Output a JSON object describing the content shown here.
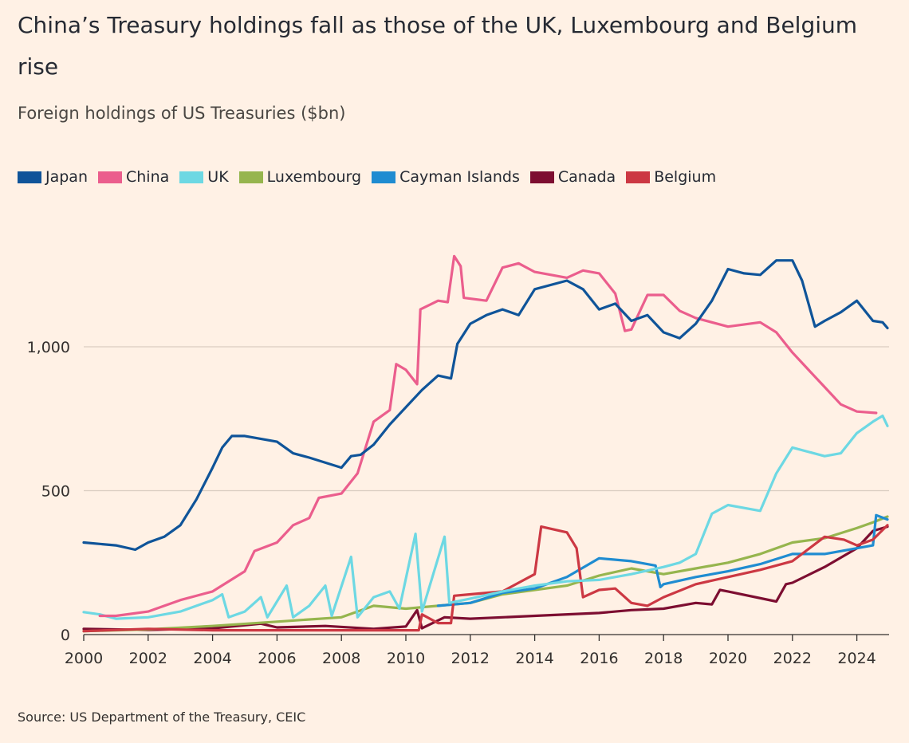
{
  "title": "China’s Treasury holdings fall as those of the UK, Luxembourg and Belgium rise",
  "subtitle": "Foreign holdings of US Treasuries ($bn)",
  "source": "Source: US Department of the Treasury, CEIC",
  "chart_data": {
    "type": "line",
    "title": "China’s Treasury holdings fall as those of the UK, Luxembourg and Belgium rise",
    "subtitle": "Foreign holdings of US Treasuries ($bn)",
    "xlabel": "",
    "ylabel": "",
    "xlim": [
      2000,
      2025
    ],
    "ylim": [
      0,
      1400
    ],
    "x_ticks": [
      "2000",
      "2002",
      "2004",
      "2006",
      "2008",
      "2010",
      "2012",
      "2014",
      "2016",
      "2018",
      "2020",
      "2022",
      "2024"
    ],
    "y_ticks": [
      {
        "value": 0,
        "label": "0"
      },
      {
        "value": 500,
        "label": "500"
      },
      {
        "value": 1000,
        "label": "1,000"
      }
    ],
    "grid": "horizontal",
    "legend_position": "top-left",
    "series": [
      {
        "name": "Canada",
        "color": "#7D0E31",
        "points": [
          [
            2000,
            20
          ],
          [
            2002,
            16
          ],
          [
            2004,
            22
          ],
          [
            2005.5,
            38
          ],
          [
            2006,
            25
          ],
          [
            2007.5,
            30
          ],
          [
            2009,
            20
          ],
          [
            2010,
            28
          ],
          [
            2010.35,
            85
          ],
          [
            2010.5,
            22
          ],
          [
            2011.2,
            60
          ],
          [
            2012,
            55
          ],
          [
            2014,
            65
          ],
          [
            2016,
            75
          ],
          [
            2017,
            85
          ],
          [
            2018,
            90
          ],
          [
            2019,
            110
          ],
          [
            2019.5,
            105
          ],
          [
            2019.75,
            155
          ],
          [
            2020,
            150
          ],
          [
            2021.5,
            115
          ],
          [
            2021.8,
            175
          ],
          [
            2022,
            180
          ],
          [
            2023,
            235
          ],
          [
            2024,
            300
          ],
          [
            2024.5,
            360
          ],
          [
            2024.95,
            375
          ]
        ]
      },
      {
        "name": "Luxembourg",
        "color": "#96B54E",
        "points": [
          [
            2000,
            12
          ],
          [
            2002,
            18
          ],
          [
            2004,
            30
          ],
          [
            2006,
            45
          ],
          [
            2008,
            60
          ],
          [
            2009,
            100
          ],
          [
            2010,
            90
          ],
          [
            2011,
            100
          ],
          [
            2012,
            110
          ],
          [
            2013,
            140
          ],
          [
            2014,
            155
          ],
          [
            2015,
            170
          ],
          [
            2016,
            205
          ],
          [
            2017,
            230
          ],
          [
            2018,
            210
          ],
          [
            2019,
            230
          ],
          [
            2020,
            250
          ],
          [
            2021,
            280
          ],
          [
            2022,
            320
          ],
          [
            2023,
            335
          ],
          [
            2024,
            370
          ],
          [
            2024.5,
            390
          ],
          [
            2024.95,
            410
          ]
        ]
      },
      {
        "name": "Cayman Islands",
        "color": "#1F8CD1",
        "points": [
          [
            2011,
            100
          ],
          [
            2012,
            110
          ],
          [
            2013,
            145
          ],
          [
            2014,
            160
          ],
          [
            2015,
            200
          ],
          [
            2016,
            265
          ],
          [
            2017,
            255
          ],
          [
            2017.75,
            240
          ],
          [
            2017.9,
            165
          ],
          [
            2018,
            175
          ],
          [
            2019,
            200
          ],
          [
            2020,
            220
          ],
          [
            2021,
            245
          ],
          [
            2022,
            280
          ],
          [
            2023,
            280
          ],
          [
            2024,
            300
          ],
          [
            2024.5,
            310
          ],
          [
            2024.6,
            415
          ],
          [
            2024.95,
            400
          ]
        ]
      },
      {
        "name": "Belgium",
        "color": "#CC3843",
        "points": [
          [
            2000,
            12
          ],
          [
            2002,
            20
          ],
          [
            2004,
            15
          ],
          [
            2006,
            15
          ],
          [
            2008,
            15
          ],
          [
            2010.4,
            15
          ],
          [
            2010.5,
            70
          ],
          [
            2011,
            40
          ],
          [
            2011.4,
            40
          ],
          [
            2011.5,
            135
          ],
          [
            2012,
            140
          ],
          [
            2013,
            150
          ],
          [
            2013.5,
            180
          ],
          [
            2014,
            210
          ],
          [
            2014.2,
            375
          ],
          [
            2015,
            355
          ],
          [
            2015.3,
            300
          ],
          [
            2015.5,
            130
          ],
          [
            2016,
            155
          ],
          [
            2016.5,
            160
          ],
          [
            2017,
            110
          ],
          [
            2017.5,
            100
          ],
          [
            2018,
            130
          ],
          [
            2019,
            175
          ],
          [
            2020,
            200
          ],
          [
            2021,
            225
          ],
          [
            2022,
            255
          ],
          [
            2023,
            340
          ],
          [
            2023.6,
            330
          ],
          [
            2024,
            310
          ],
          [
            2024.5,
            330
          ],
          [
            2024.95,
            380
          ]
        ]
      },
      {
        "name": "UK",
        "color": "#6DD8E3",
        "points": [
          [
            2000,
            78
          ],
          [
            2000.5,
            70
          ],
          [
            2001,
            55
          ],
          [
            2002,
            60
          ],
          [
            2003,
            80
          ],
          [
            2004,
            120
          ],
          [
            2004.3,
            140
          ],
          [
            2004.5,
            60
          ],
          [
            2005,
            80
          ],
          [
            2005.5,
            130
          ],
          [
            2005.7,
            60
          ],
          [
            2006.3,
            170
          ],
          [
            2006.5,
            60
          ],
          [
            2007,
            100
          ],
          [
            2007.5,
            170
          ],
          [
            2007.7,
            65
          ],
          [
            2008.3,
            270
          ],
          [
            2008.5,
            60
          ],
          [
            2009,
            130
          ],
          [
            2009.5,
            150
          ],
          [
            2009.8,
            90
          ],
          [
            2010.3,
            350
          ],
          [
            2010.5,
            80
          ],
          [
            2011.2,
            340
          ],
          [
            2011.35,
            110
          ],
          [
            2012,
            125
          ],
          [
            2013,
            150
          ],
          [
            2014,
            170
          ],
          [
            2015,
            185
          ],
          [
            2016,
            190
          ],
          [
            2017,
            210
          ],
          [
            2018,
            235
          ],
          [
            2018.5,
            250
          ],
          [
            2019,
            280
          ],
          [
            2019.5,
            420
          ],
          [
            2020,
            450
          ],
          [
            2021,
            430
          ],
          [
            2021.5,
            560
          ],
          [
            2022,
            650
          ],
          [
            2023,
            620
          ],
          [
            2023.5,
            630
          ],
          [
            2024,
            700
          ],
          [
            2024.5,
            740
          ],
          [
            2024.8,
            760
          ],
          [
            2024.95,
            725
          ]
        ]
      },
      {
        "name": "China",
        "color": "#EB5E8D",
        "points": [
          [
            2000.5,
            65
          ],
          [
            2001,
            65
          ],
          [
            2002,
            80
          ],
          [
            2003,
            120
          ],
          [
            2004,
            150
          ],
          [
            2005,
            220
          ],
          [
            2005.3,
            290
          ],
          [
            2006,
            320
          ],
          [
            2006.5,
            380
          ],
          [
            2007,
            405
          ],
          [
            2007.3,
            475
          ],
          [
            2008,
            490
          ],
          [
            2008.5,
            560
          ],
          [
            2009,
            740
          ],
          [
            2009.5,
            780
          ],
          [
            2009.7,
            940
          ],
          [
            2010,
            920
          ],
          [
            2010.35,
            870
          ],
          [
            2010.45,
            1130
          ],
          [
            2011,
            1160
          ],
          [
            2011.3,
            1155
          ],
          [
            2011.5,
            1315
          ],
          [
            2011.7,
            1280
          ],
          [
            2011.8,
            1170
          ],
          [
            2012.5,
            1160
          ],
          [
            2013,
            1275
          ],
          [
            2013.5,
            1290
          ],
          [
            2014,
            1260
          ],
          [
            2015,
            1240
          ],
          [
            2015.5,
            1265
          ],
          [
            2016,
            1255
          ],
          [
            2016.5,
            1185
          ],
          [
            2016.8,
            1055
          ],
          [
            2017,
            1060
          ],
          [
            2017.5,
            1180
          ],
          [
            2018,
            1180
          ],
          [
            2018.5,
            1125
          ],
          [
            2019,
            1100
          ],
          [
            2020,
            1070
          ],
          [
            2021,
            1085
          ],
          [
            2021.5,
            1050
          ],
          [
            2022,
            980
          ],
          [
            2022.5,
            920
          ],
          [
            2023,
            860
          ],
          [
            2023.5,
            800
          ],
          [
            2024,
            775
          ],
          [
            2024.6,
            770
          ]
        ]
      },
      {
        "name": "Japan",
        "color": "#0F5499",
        "points": [
          [
            2000,
            320
          ],
          [
            2001,
            310
          ],
          [
            2001.6,
            295
          ],
          [
            2002,
            320
          ],
          [
            2002.5,
            340
          ],
          [
            2003,
            380
          ],
          [
            2003.5,
            470
          ],
          [
            2004,
            580
          ],
          [
            2004.3,
            650
          ],
          [
            2004.6,
            690
          ],
          [
            2005,
            690
          ],
          [
            2006,
            670
          ],
          [
            2006.5,
            630
          ],
          [
            2007,
            615
          ],
          [
            2008,
            580
          ],
          [
            2008.3,
            620
          ],
          [
            2008.6,
            625
          ],
          [
            2009,
            660
          ],
          [
            2009.5,
            730
          ],
          [
            2010,
            790
          ],
          [
            2010.5,
            850
          ],
          [
            2011,
            900
          ],
          [
            2011.4,
            890
          ],
          [
            2011.6,
            1010
          ],
          [
            2012,
            1080
          ],
          [
            2012.5,
            1110
          ],
          [
            2013,
            1130
          ],
          [
            2013.5,
            1110
          ],
          [
            2014,
            1200
          ],
          [
            2015,
            1230
          ],
          [
            2015.5,
            1200
          ],
          [
            2016,
            1130
          ],
          [
            2016.5,
            1150
          ],
          [
            2017,
            1090
          ],
          [
            2017.5,
            1110
          ],
          [
            2018,
            1050
          ],
          [
            2018.5,
            1030
          ],
          [
            2019,
            1080
          ],
          [
            2019.5,
            1160
          ],
          [
            2020,
            1270
          ],
          [
            2020.5,
            1255
          ],
          [
            2021,
            1250
          ],
          [
            2021.5,
            1300
          ],
          [
            2022,
            1300
          ],
          [
            2022.3,
            1230
          ],
          [
            2022.7,
            1070
          ],
          [
            2023,
            1090
          ],
          [
            2023.5,
            1120
          ],
          [
            2024,
            1160
          ],
          [
            2024.5,
            1090
          ],
          [
            2024.8,
            1085
          ],
          [
            2024.95,
            1065
          ]
        ]
      }
    ]
  },
  "legend": [
    {
      "name": "Japan",
      "color": "#0F5499"
    },
    {
      "name": "China",
      "color": "#EB5E8D"
    },
    {
      "name": "UK",
      "color": "#6DD8E3"
    },
    {
      "name": "Luxembourg",
      "color": "#96B54E"
    },
    {
      "name": "Cayman Islands",
      "color": "#1F8CD1"
    },
    {
      "name": "Canada",
      "color": "#7D0E31"
    },
    {
      "name": "Belgium",
      "color": "#CC3843"
    }
  ]
}
